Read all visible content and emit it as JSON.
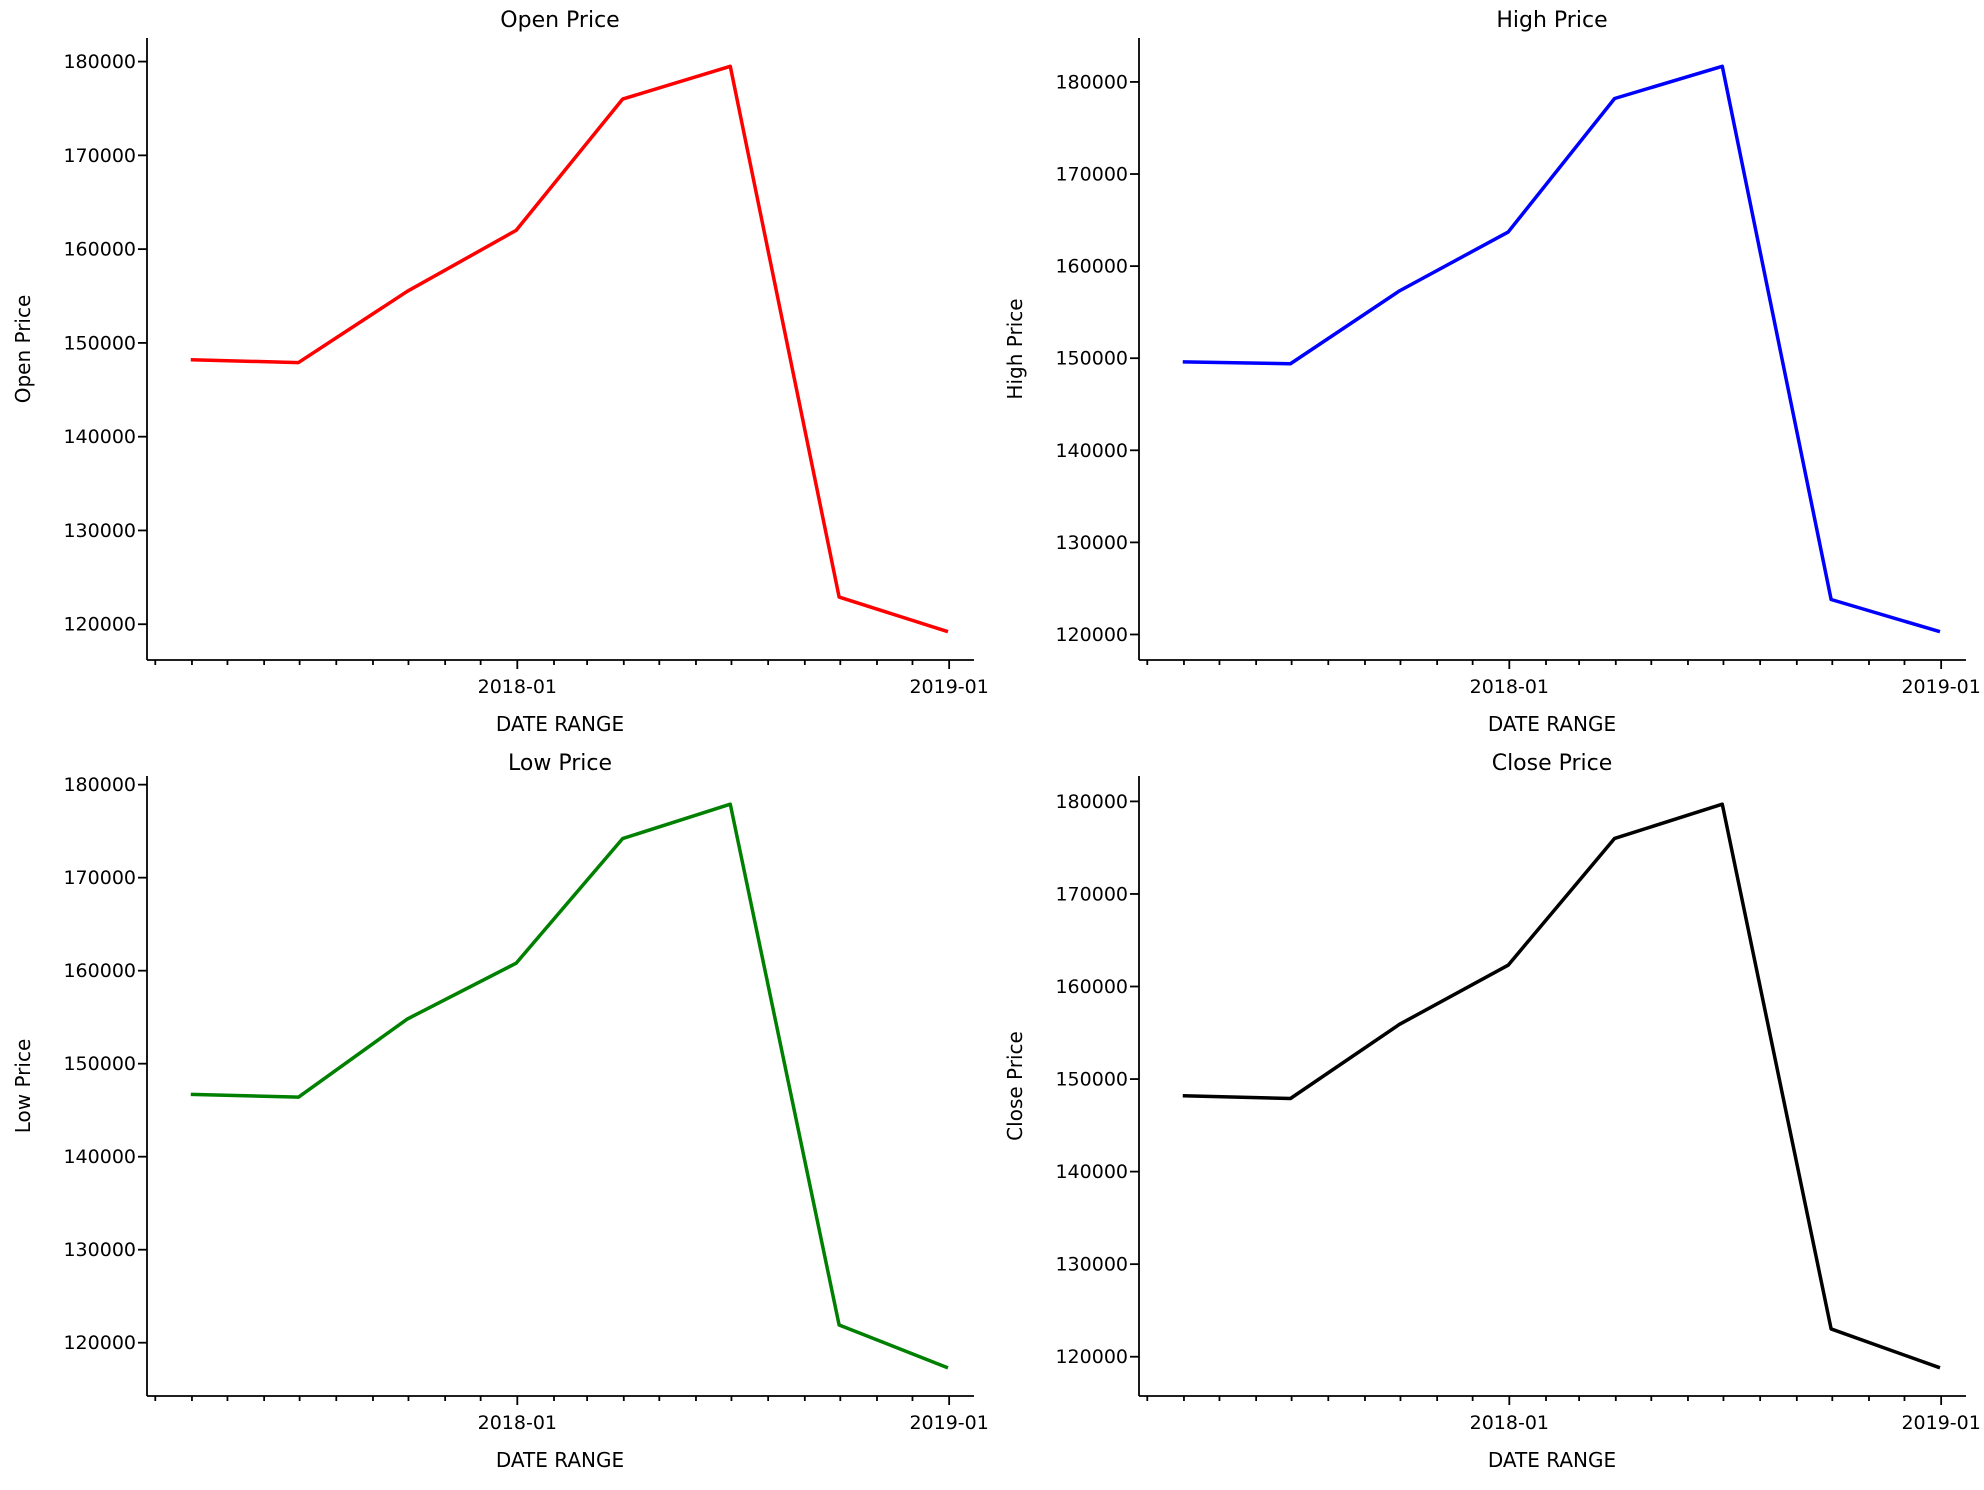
{
  "figure": {
    "background": "#ffffff",
    "x_axis_label": "DATE RANGE",
    "x_tick_labels_shown": [
      "2018-01",
      "2019-01"
    ],
    "y_tick_labels_shown": [
      "120000",
      "130000",
      "140000",
      "150000",
      "160000",
      "170000",
      "180000"
    ]
  },
  "chart_data": [
    {
      "type": "line",
      "title": "Open Price",
      "xlabel": "DATE RANGE",
      "ylabel": "Open Price",
      "line_color": "#ff0000",
      "x": [
        "2017-03-31",
        "2017-06-30",
        "2017-09-30",
        "2017-12-31",
        "2018-03-31",
        "2018-06-30",
        "2018-09-30",
        "2018-12-31"
      ],
      "values": [
        148200,
        147900,
        155500,
        162000,
        176000,
        179500,
        122900,
        119200
      ],
      "x_major_ticks": [
        {
          "date": "2018-01-01",
          "label": "2018-01"
        },
        {
          "date": "2019-01-01",
          "label": "2019-01"
        }
      ],
      "minor_ticks": "monthly",
      "xlim": [
        "2017-02-22",
        "2019-01-22"
      ],
      "y_ticks": [
        120000,
        130000,
        140000,
        150000,
        160000,
        170000,
        180000
      ],
      "y_margin_frac": 0.05,
      "grid": false,
      "legend_position": "none"
    },
    {
      "type": "line",
      "title": "High Price",
      "xlabel": "DATE RANGE",
      "ylabel": "High Price",
      "line_color": "#0000ff",
      "x": [
        "2017-03-31",
        "2017-06-30",
        "2017-09-30",
        "2017-12-31",
        "2018-03-31",
        "2018-06-30",
        "2018-09-30",
        "2018-12-31"
      ],
      "values": [
        149600,
        149400,
        157300,
        163700,
        178200,
        181700,
        123800,
        120300
      ],
      "x_major_ticks": [
        {
          "date": "2018-01-01",
          "label": "2018-01"
        },
        {
          "date": "2019-01-01",
          "label": "2019-01"
        }
      ],
      "minor_ticks": "monthly",
      "xlim": [
        "2017-02-22",
        "2019-01-22"
      ],
      "y_ticks": [
        120000,
        130000,
        140000,
        150000,
        160000,
        170000,
        180000
      ],
      "y_margin_frac": 0.05,
      "grid": false,
      "legend_position": "none"
    },
    {
      "type": "line",
      "title": "Low Price",
      "xlabel": "DATE RANGE",
      "ylabel": "Low Price",
      "line_color": "#008000",
      "x": [
        "2017-03-31",
        "2017-06-30",
        "2017-09-30",
        "2017-12-31",
        "2018-03-31",
        "2018-06-30",
        "2018-09-30",
        "2018-12-31"
      ],
      "values": [
        146700,
        146400,
        154800,
        160800,
        174200,
        177900,
        121900,
        117300
      ],
      "x_major_ticks": [
        {
          "date": "2018-01-01",
          "label": "2018-01"
        },
        {
          "date": "2019-01-01",
          "label": "2019-01"
        }
      ],
      "minor_ticks": "monthly",
      "xlim": [
        "2017-02-22",
        "2019-01-22"
      ],
      "y_ticks": [
        120000,
        130000,
        140000,
        150000,
        160000,
        170000,
        180000
      ],
      "y_margin_frac": 0.05,
      "grid": false,
      "legend_position": "none"
    },
    {
      "type": "line",
      "title": "Close Price",
      "xlabel": "DATE RANGE",
      "ylabel": "Close Price",
      "line_color": "#000000",
      "x": [
        "2017-03-31",
        "2017-06-30",
        "2017-09-30",
        "2017-12-31",
        "2018-03-31",
        "2018-06-30",
        "2018-09-30",
        "2018-12-31"
      ],
      "values": [
        148200,
        147900,
        155900,
        162300,
        176000,
        179700,
        123000,
        118800
      ],
      "x_major_ticks": [
        {
          "date": "2018-01-01",
          "label": "2018-01"
        },
        {
          "date": "2019-01-01",
          "label": "2019-01"
        }
      ],
      "minor_ticks": "monthly",
      "xlim": [
        "2017-02-22",
        "2019-01-22"
      ],
      "y_ticks": [
        120000,
        130000,
        140000,
        150000,
        160000,
        170000,
        180000
      ],
      "y_margin_frac": 0.05,
      "grid": false,
      "legend_position": "none"
    }
  ]
}
